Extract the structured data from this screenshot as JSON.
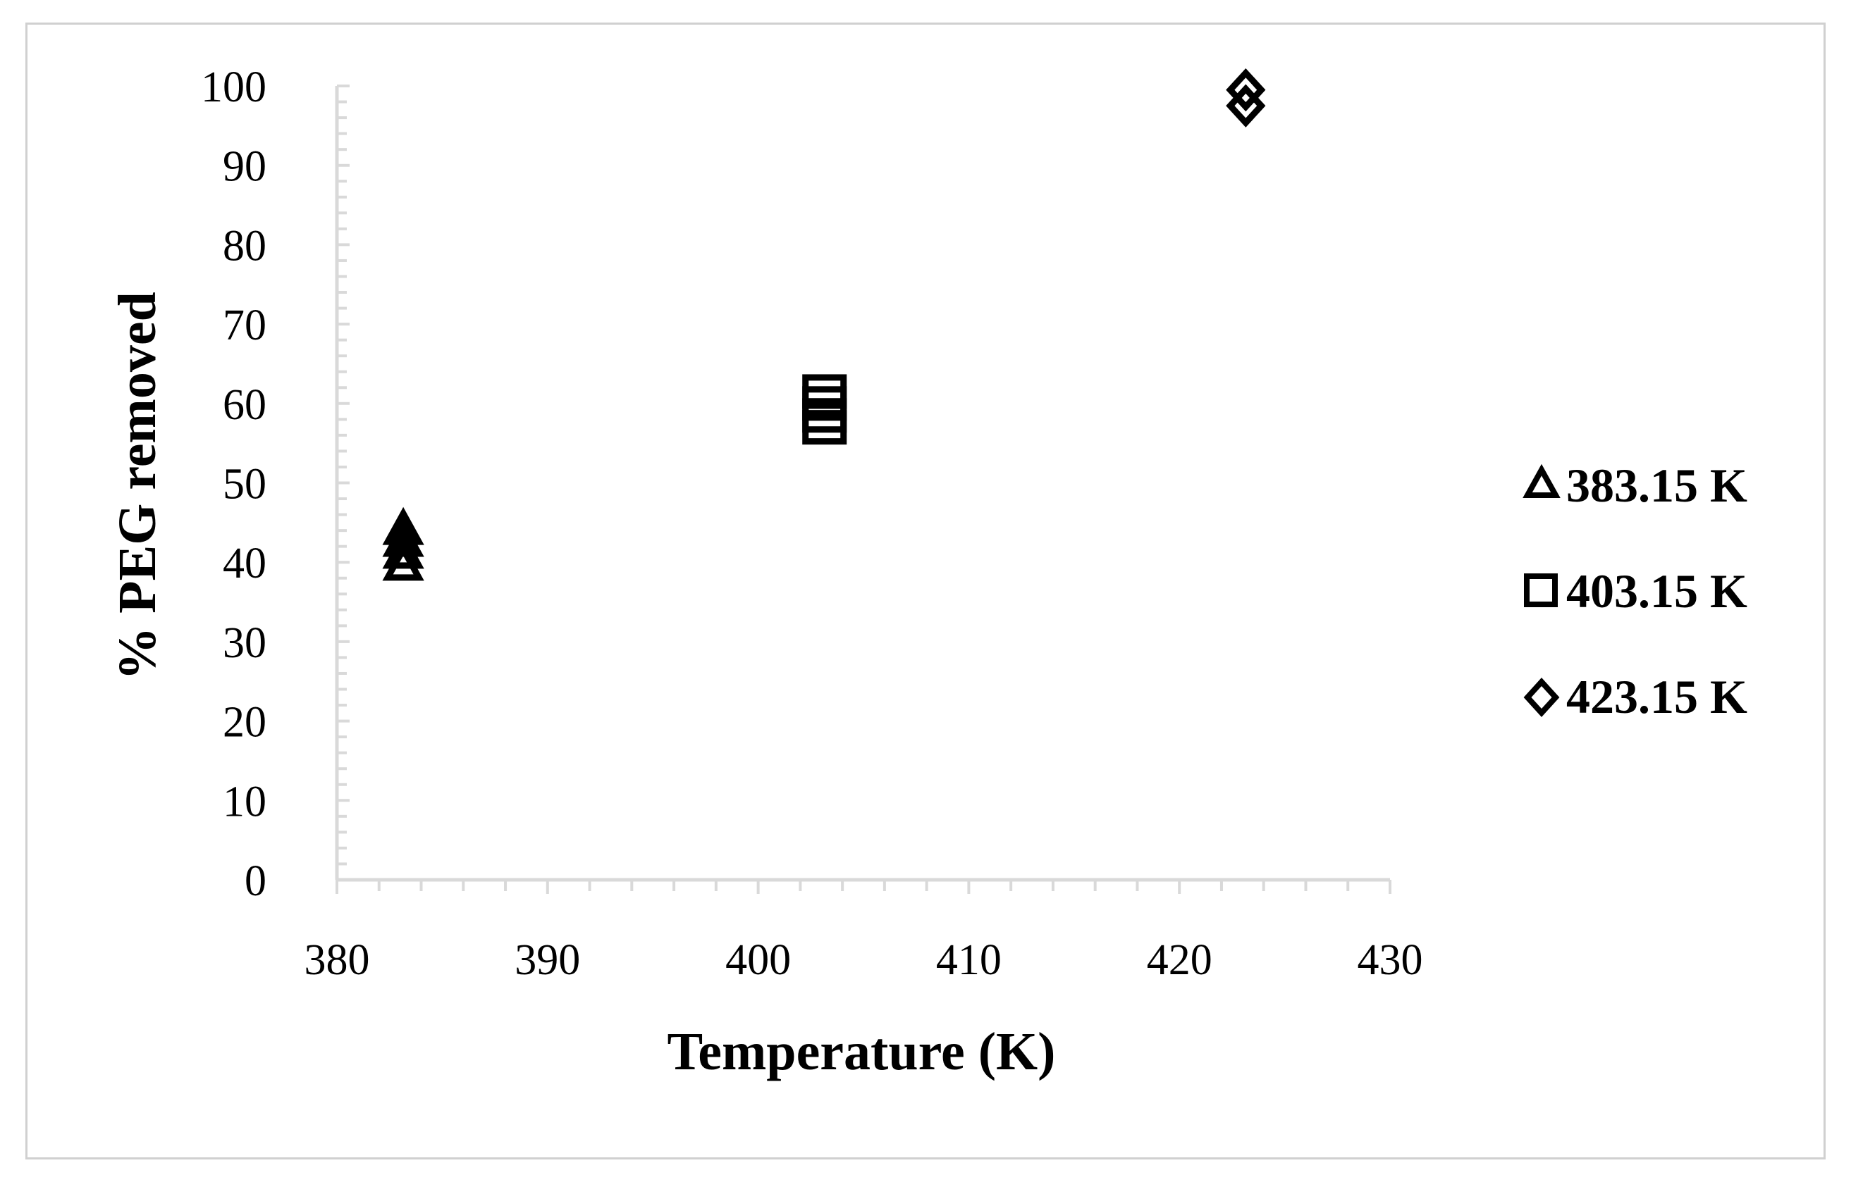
{
  "chart_data": {
    "type": "scatter",
    "title": "",
    "xlabel": "Temperature (K)",
    "ylabel": "% PEG removed",
    "xlim": [
      380,
      430
    ],
    "ylim": [
      0,
      100
    ],
    "x_ticks": [
      380,
      390,
      400,
      410,
      420,
      430
    ],
    "y_ticks": [
      0,
      10,
      20,
      30,
      40,
      50,
      60,
      70,
      80,
      90,
      100
    ],
    "x_minor_step": 2,
    "y_minor_step": 2,
    "grid": false,
    "legend_position": "right",
    "series": [
      {
        "name": "383.15 K",
        "marker": "triangle",
        "points": [
          {
            "x": 383.15,
            "y": 39.5
          },
          {
            "x": 383.15,
            "y": 41.0
          },
          {
            "x": 383.15,
            "y": 42.5
          },
          {
            "x": 383.15,
            "y": 44.0
          }
        ]
      },
      {
        "name": "403.15 K",
        "marker": "square",
        "points": [
          {
            "x": 403.15,
            "y": 57.0
          },
          {
            "x": 403.15,
            "y": 58.5
          },
          {
            "x": 403.15,
            "y": 60.0
          },
          {
            "x": 403.15,
            "y": 61.5
          }
        ]
      },
      {
        "name": "423.15 K",
        "marker": "diamond",
        "points": [
          {
            "x": 423.15,
            "y": 97.5
          },
          {
            "x": 423.15,
            "y": 99.5
          }
        ]
      }
    ],
    "colors": {
      "marker": "#000000",
      "axis": "#d9d9d9",
      "text": "#000000"
    }
  }
}
